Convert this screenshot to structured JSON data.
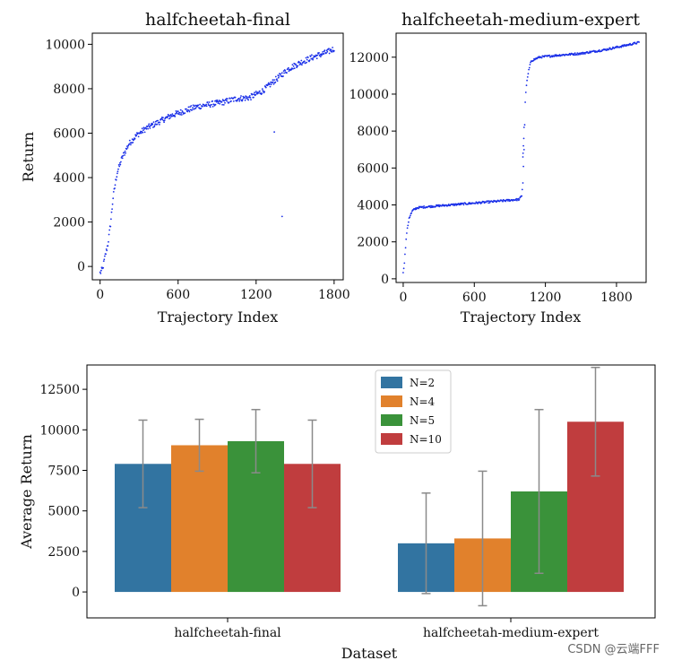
{
  "watermark": "CSDN @云端FFF",
  "colors": {
    "scatter": "#1a2fe8",
    "errorbar": "#8a8a8a"
  },
  "chart_data": [
    {
      "type": "scatter",
      "title": "halfcheetah-final",
      "xlabel": "Trajectory Index",
      "ylabel": "Return",
      "xlim": [
        -60,
        1870
      ],
      "ylim": [
        -600,
        10500
      ],
      "xticks": [
        0,
        600,
        1200,
        1800
      ],
      "xtick_labels": [
        "0",
        "600",
        "1200",
        "1800"
      ],
      "yticks": [
        0,
        2000,
        4000,
        6000,
        8000,
        10000
      ],
      "ytick_labels": [
        "0",
        "2000",
        "4000",
        "6000",
        "8000",
        "10000"
      ],
      "curve": [
        [
          0,
          -300
        ],
        [
          20,
          -100
        ],
        [
          40,
          500
        ],
        [
          60,
          1000
        ],
        [
          80,
          1900
        ],
        [
          100,
          3100
        ],
        [
          130,
          4200
        ],
        [
          170,
          4900
        ],
        [
          220,
          5500
        ],
        [
          280,
          5900
        ],
        [
          350,
          6200
        ],
        [
          450,
          6500
        ],
        [
          550,
          6800
        ],
        [
          650,
          7000
        ],
        [
          750,
          7200
        ],
        [
          850,
          7300
        ],
        [
          950,
          7400
        ],
        [
          1050,
          7550
        ],
        [
          1150,
          7600
        ],
        [
          1250,
          7900
        ],
        [
          1350,
          8400
        ],
        [
          1450,
          8900
        ],
        [
          1550,
          9200
        ],
        [
          1650,
          9450
        ],
        [
          1750,
          9650
        ],
        [
          1800,
          9800
        ]
      ],
      "outliers": [
        [
          1340,
          6050
        ],
        [
          1400,
          2250
        ]
      ]
    },
    {
      "type": "scatter",
      "title": "halfcheetah-medium-expert",
      "xlabel": "Trajectory Index",
      "ylabel": "",
      "xlim": [
        -60,
        2050
      ],
      "ylim": [
        -200,
        13300
      ],
      "xticks": [
        0,
        600,
        1200,
        1800
      ],
      "xtick_labels": [
        "0",
        "600",
        "1200",
        "1800"
      ],
      "yticks": [
        0,
        2000,
        4000,
        6000,
        8000,
        10000,
        12000
      ],
      "ytick_labels": [
        "0",
        "2000",
        "4000",
        "6000",
        "8000",
        "10000",
        "12000"
      ],
      "curve": [
        [
          0,
          300
        ],
        [
          10,
          900
        ],
        [
          30,
          2500
        ],
        [
          50,
          3300
        ],
        [
          80,
          3700
        ],
        [
          120,
          3850
        ],
        [
          200,
          3900
        ],
        [
          400,
          4000
        ],
        [
          600,
          4100
        ],
        [
          800,
          4200
        ],
        [
          980,
          4300
        ],
        [
          1000,
          4500
        ],
        [
          1010,
          5200
        ],
        [
          1020,
          7000
        ],
        [
          1030,
          9600
        ],
        [
          1040,
          10500
        ],
        [
          1060,
          11300
        ],
        [
          1080,
          11800
        ],
        [
          1150,
          12000
        ],
        [
          1300,
          12100
        ],
        [
          1500,
          12200
        ],
        [
          1700,
          12400
        ],
        [
          1850,
          12600
        ],
        [
          1990,
          12800
        ]
      ],
      "outliers": [
        [
          1010,
          6600
        ],
        [
          1012,
          6800
        ],
        [
          1015,
          7200
        ],
        [
          1018,
          7600
        ],
        [
          1020,
          8200
        ]
      ]
    },
    {
      "type": "bar",
      "title": "",
      "xlabel": "Dataset",
      "ylabel": "Average Return",
      "categories": [
        "halfcheetah-final",
        "halfcheetah-medium-expert"
      ],
      "ylim": [
        -1600,
        14000
      ],
      "yticks": [
        0,
        2500,
        5000,
        7500,
        10000,
        12500
      ],
      "ytick_labels": [
        "0",
        "2500",
        "5000",
        "7500",
        "10000",
        "12500"
      ],
      "legend_position": "top-center",
      "series": [
        {
          "name": "N=2",
          "color": "#3274a1",
          "values": [
            7900,
            3000
          ],
          "errors": [
            2700,
            3100
          ]
        },
        {
          "name": "N=4",
          "color": "#e1812c",
          "values": [
            9050,
            3300
          ],
          "errors": [
            1600,
            4150
          ]
        },
        {
          "name": "N=5",
          "color": "#3a923a",
          "values": [
            9300,
            6200
          ],
          "errors": [
            1950,
            5050
          ]
        },
        {
          "name": "N=10",
          "color": "#c03d3e",
          "values": [
            7900,
            10500
          ],
          "errors": [
            2700,
            3350
          ]
        }
      ]
    }
  ]
}
